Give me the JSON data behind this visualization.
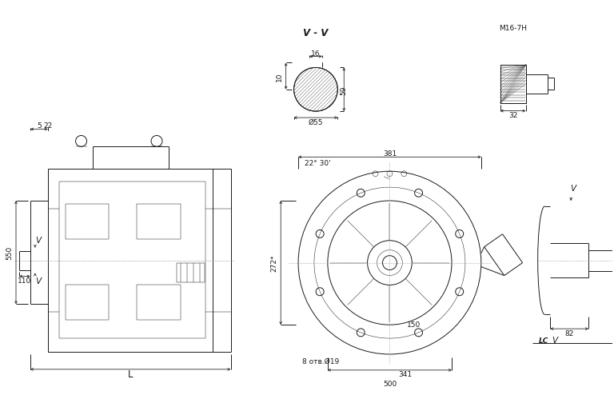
{
  "bg_color": "#ffffff",
  "line_color": "#1a1a1a",
  "lw": 0.7,
  "tlw": 0.35,
  "fs": 6.5,
  "dims": {
    "dim_5": "5",
    "dim_22": "22",
    "dim_550": "550",
    "dim_110": "110",
    "dim_L": "L",
    "dim_272": "272*",
    "dim_22_30": "22° 30'",
    "dim_381": "381",
    "dim_150": "150",
    "dim_341": "341",
    "dim_500": "500",
    "dim_8holes": "8 отв.Ø19",
    "dim_V": "V",
    "dim_82": "82",
    "dim_LC": "LC",
    "dim_VV": "V - V",
    "dim_16": "16",
    "dim_10": "10",
    "dim_59": "59",
    "dim_55": "Ø55",
    "dim_M16": "M16-7H",
    "dim_32": "32"
  }
}
